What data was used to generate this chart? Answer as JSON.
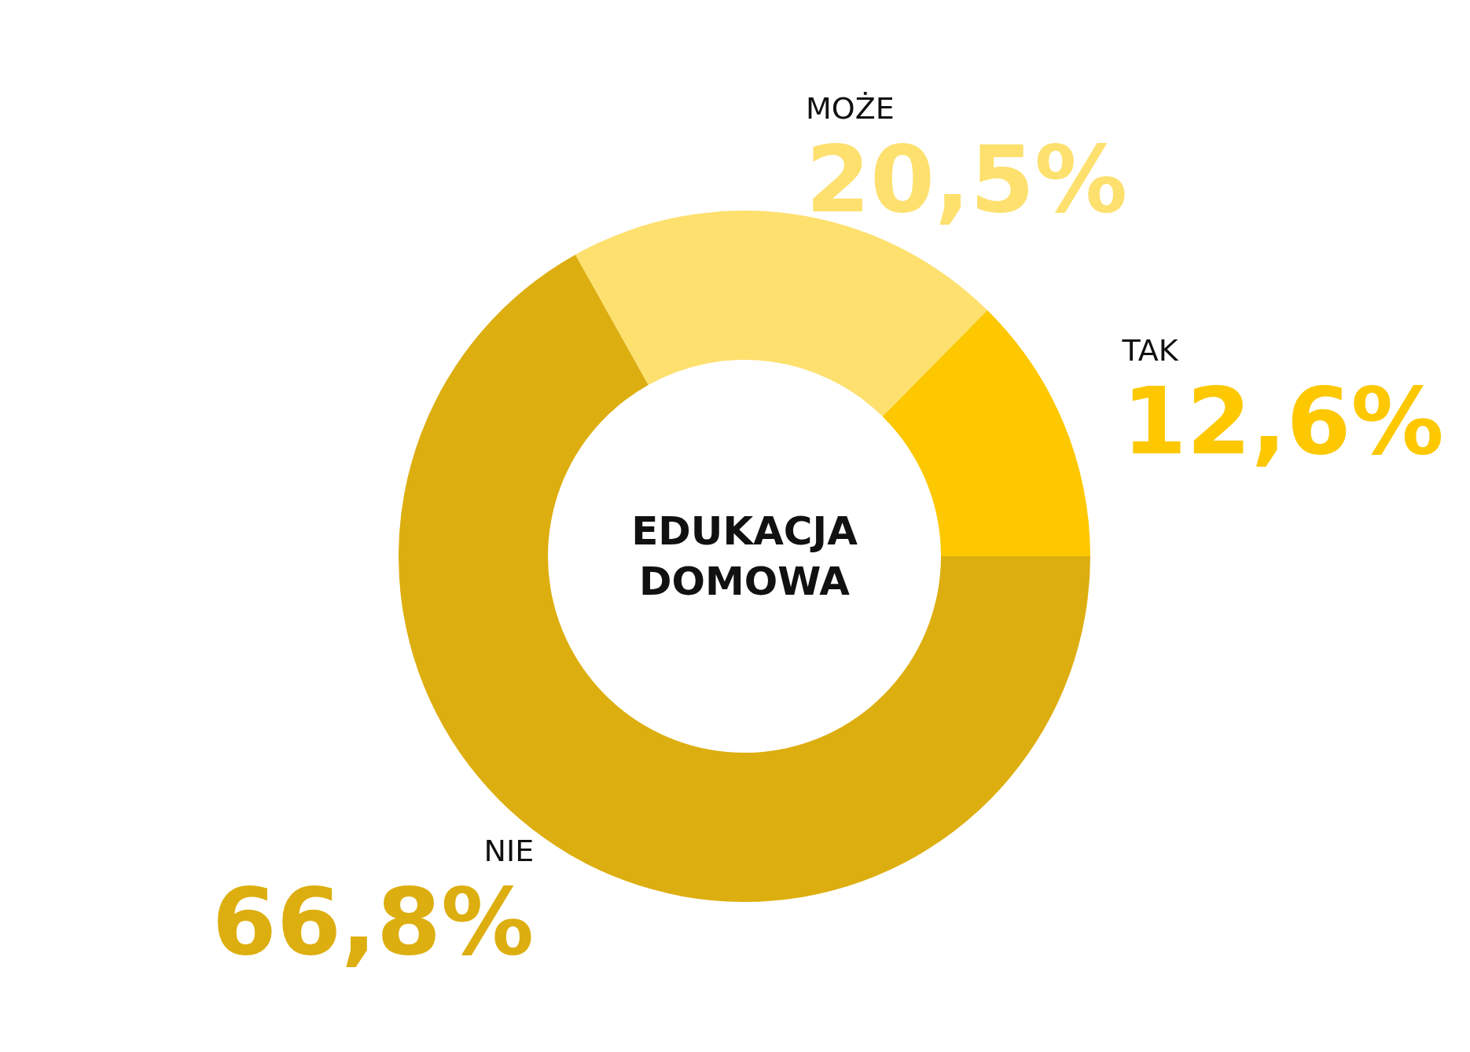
{
  "chart_data": {
    "type": "donut",
    "title": "EDUKACJA\nDOMOWA",
    "categories": [
      "TAK",
      "MOŻE",
      "NIE"
    ],
    "values": [
      12.6,
      20.5,
      66.8
    ],
    "colors": [
      "#fdc800",
      "#fde06e",
      "#ddae0f"
    ],
    "value_labels": [
      "12,6%",
      "20,5%",
      "66,8%"
    ],
    "legend": false
  }
}
